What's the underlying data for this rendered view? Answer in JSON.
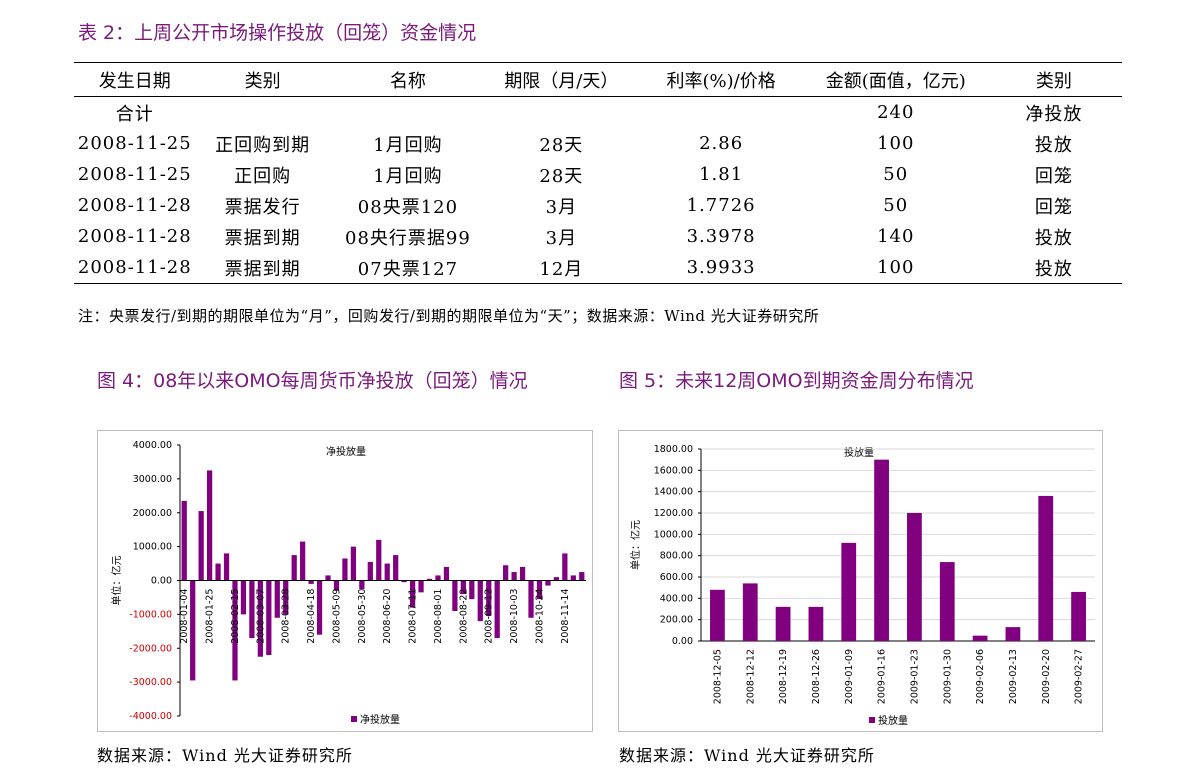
{
  "table_title": "表 2：上周公开市场操作投放（回笼）资金情况",
  "table": {
    "headers": [
      "发生日期",
      "类别",
      "名称",
      "期限（月/天）",
      "利率(%)/价格",
      "金额(面值，亿元)",
      "类别"
    ],
    "total_row": {
      "label": "合计",
      "amount": "240",
      "type": "净投放"
    },
    "rows": [
      [
        "2008-11-25",
        "正回购到期",
        "1月回购",
        "28天",
        "2.86",
        "100",
        "投放"
      ],
      [
        "2008-11-25",
        "正回购",
        "1月回购",
        "28天",
        "1.81",
        "50",
        "回笼"
      ],
      [
        "2008-11-28",
        "票据发行",
        "08央票120",
        "3月",
        "1.7726",
        "50",
        "回笼"
      ],
      [
        "2008-11-28",
        "票据到期",
        "08央行票据99",
        "3月",
        "3.3978",
        "140",
        "投放"
      ],
      [
        "2008-11-28",
        "票据到期",
        "07央票127",
        "12月",
        "3.9933",
        "100",
        "投放"
      ]
    ]
  },
  "note": "注：央票发行/到期的期限单位为“月”，回购发行/到期的期限单位为“天”；数据来源：Wind  光大证券研究所",
  "fig4_title": "图 4：08年以来OMO每周货币净投放（回笼）情况",
  "fig5_title": "图 5：未来12周OMO到期资金周分布情况",
  "source_left": "数据来源：Wind  光大证券研究所",
  "source_right": "数据来源：Wind  光大证券研究所",
  "chart_data": [
    {
      "type": "bar",
      "title": "净投放量",
      "ylabel": "单位：亿元",
      "legend": "净投放量",
      "legend_position": "bottom",
      "color": "#800080",
      "ylim": [
        -4000,
        4000
      ],
      "yticks": [
        "4000.00",
        "3000.00",
        "2000.00",
        "1000.00",
        "0.00",
        "-1000.00",
        "-2000.00",
        "-3000.00",
        "-4000.00"
      ],
      "xtick_labels": [
        "2008-01-04",
        "2008-01-25",
        "2008-02-15",
        "2008-03-07",
        "2008-03-28",
        "2008-04-18",
        "2008-05-09",
        "2008-05-30",
        "2008-06-20",
        "2008-07-11",
        "2008-08-01",
        "2008-08-22",
        "2008-09-12",
        "2008-10-03",
        "2008-10-24",
        "2008-11-14"
      ],
      "values": [
        2350,
        -2950,
        2050,
        3250,
        500,
        800,
        -2950,
        -1000,
        -1700,
        -2250,
        -2200,
        -1100,
        -1000,
        750,
        1150,
        -100,
        -1600,
        150,
        -300,
        650,
        1000,
        -250,
        550,
        1200,
        500,
        750,
        -50,
        -800,
        -350,
        50,
        150,
        400,
        -900,
        -400,
        -550,
        -1200,
        -1050,
        -1700,
        450,
        250,
        400,
        -1100,
        -550,
        -150,
        100,
        800,
        150,
        250
      ]
    },
    {
      "type": "bar",
      "title": "投放量",
      "ylabel": "单位：亿元",
      "legend": "投放量",
      "legend_position": "bottom",
      "color": "#800080",
      "ylim": [
        0,
        1800
      ],
      "yticks": [
        "1800.00",
        "1600.00",
        "1400.00",
        "1200.00",
        "1000.00",
        "800.00",
        "600.00",
        "400.00",
        "200.00",
        "0.00"
      ],
      "categories": [
        "2008-12-05",
        "2008-12-12",
        "2008-12-19",
        "2008-12-26",
        "2009-01-09",
        "2009-01-16",
        "2009-01-23",
        "2009-01-30",
        "2009-02-06",
        "2009-02-13",
        "2009-02-20",
        "2009-02-27"
      ],
      "values": [
        480,
        540,
        320,
        320,
        920,
        1700,
        1200,
        740,
        50,
        130,
        1360,
        460
      ]
    }
  ]
}
